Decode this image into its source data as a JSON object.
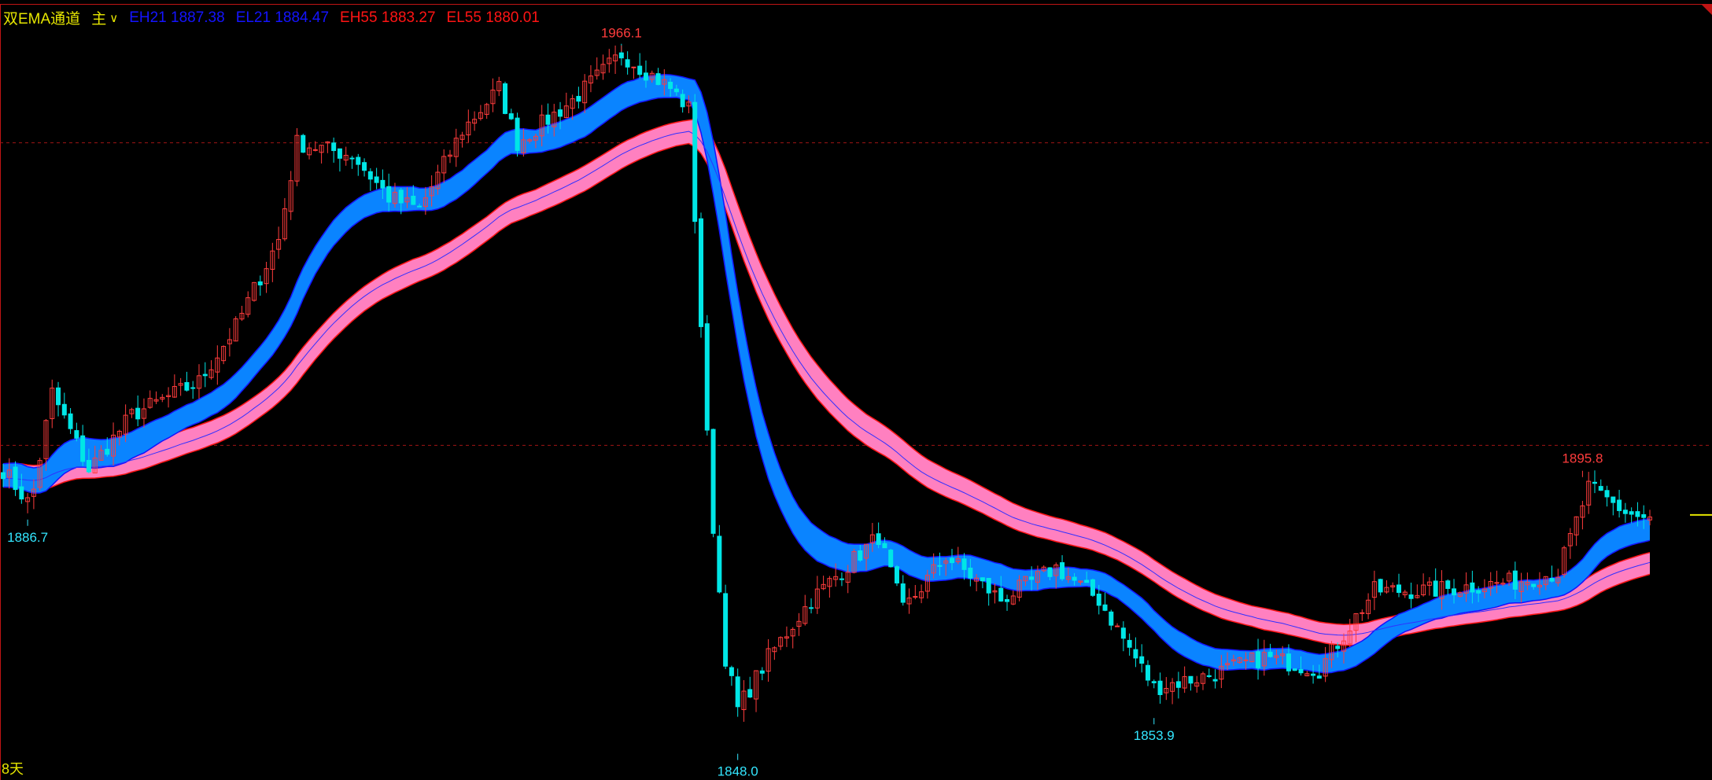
{
  "indicator": {
    "name": "双EMA通道",
    "mode": "主",
    "values": [
      {
        "label": "EH21",
        "value": "1887.38",
        "color": "#1414ff"
      },
      {
        "label": "EL21",
        "value": "1884.47",
        "color": "#1414ff"
      },
      {
        "label": "EH55",
        "value": "1883.27",
        "color": "#ff1414"
      },
      {
        "label": "EL55",
        "value": "1880.01",
        "color": "#ff1414"
      }
    ]
  },
  "period_label": "8天",
  "colors": {
    "background": "#000000",
    "up_candle": "#ff3c3c",
    "down_candle": "#00e6e6",
    "ema21_band": "#0a84ff",
    "ema21_edge": "#1414ff",
    "ema55_band": "#ff80c0",
    "ema55_edge": "#ff1414",
    "grid": "#a01414",
    "current_price_marker": "#e6e600"
  },
  "chart_data": {
    "type": "candlestick",
    "bars": 270,
    "ylim": [
      1844.7,
      1973.6
    ],
    "grid_levels": [
      1950,
      1900
    ],
    "close_path": [
      [
        0,
        1896
      ],
      [
        4.5,
        1890
      ],
      [
        8,
        1908.7
      ],
      [
        14,
        1896
      ],
      [
        21,
        1905
      ],
      [
        32,
        1910.5
      ],
      [
        38,
        1919.6
      ],
      [
        45,
        1934
      ],
      [
        48,
        1950
      ],
      [
        57,
        1948
      ],
      [
        63,
        1941
      ],
      [
        68,
        1939
      ],
      [
        75,
        1952
      ],
      [
        81,
        1959
      ],
      [
        84,
        1950
      ],
      [
        93,
        1957
      ],
      [
        101,
        1964.7
      ],
      [
        109,
        1959
      ],
      [
        112,
        1955.6
      ],
      [
        114,
        1920
      ],
      [
        115.5,
        1892
      ],
      [
        118,
        1865
      ],
      [
        120,
        1856.4
      ],
      [
        125,
        1865
      ],
      [
        132,
        1874.5
      ],
      [
        143,
        1885
      ],
      [
        147,
        1872.7
      ],
      [
        154,
        1881.7
      ],
      [
        163,
        1874.5
      ],
      [
        172,
        1879.8
      ],
      [
        179,
        1874.5
      ],
      [
        188,
        1860
      ],
      [
        197,
        1862
      ],
      [
        206,
        1865
      ],
      [
        215,
        1863
      ],
      [
        224,
        1876
      ],
      [
        233,
        1876
      ],
      [
        247,
        1877.5
      ],
      [
        254,
        1879
      ],
      [
        259,
        1893
      ],
      [
        265,
        1889
      ],
      [
        269,
        1887.5
      ]
    ],
    "ema_periods": [
      21,
      55
    ],
    "current_price": 1888.5,
    "annotations": [
      {
        "text": "1966.1",
        "bar": 101,
        "price": 1966.1,
        "kind": "high",
        "color": "#ff3c3c"
      },
      {
        "text": "1848.0",
        "bar": 120,
        "price": 1848.0,
        "kind": "low",
        "color": "#33e6ff"
      },
      {
        "text": "1886.7",
        "bar": 4,
        "price": 1886.7,
        "kind": "low",
        "color": "#33e6ff"
      },
      {
        "text": "1853.9",
        "bar": 188,
        "price": 1853.9,
        "kind": "low",
        "color": "#33e6ff"
      },
      {
        "text": "1895.8",
        "bar": 258,
        "price": 1895.8,
        "kind": "high",
        "color": "#ff3c3c"
      }
    ]
  }
}
